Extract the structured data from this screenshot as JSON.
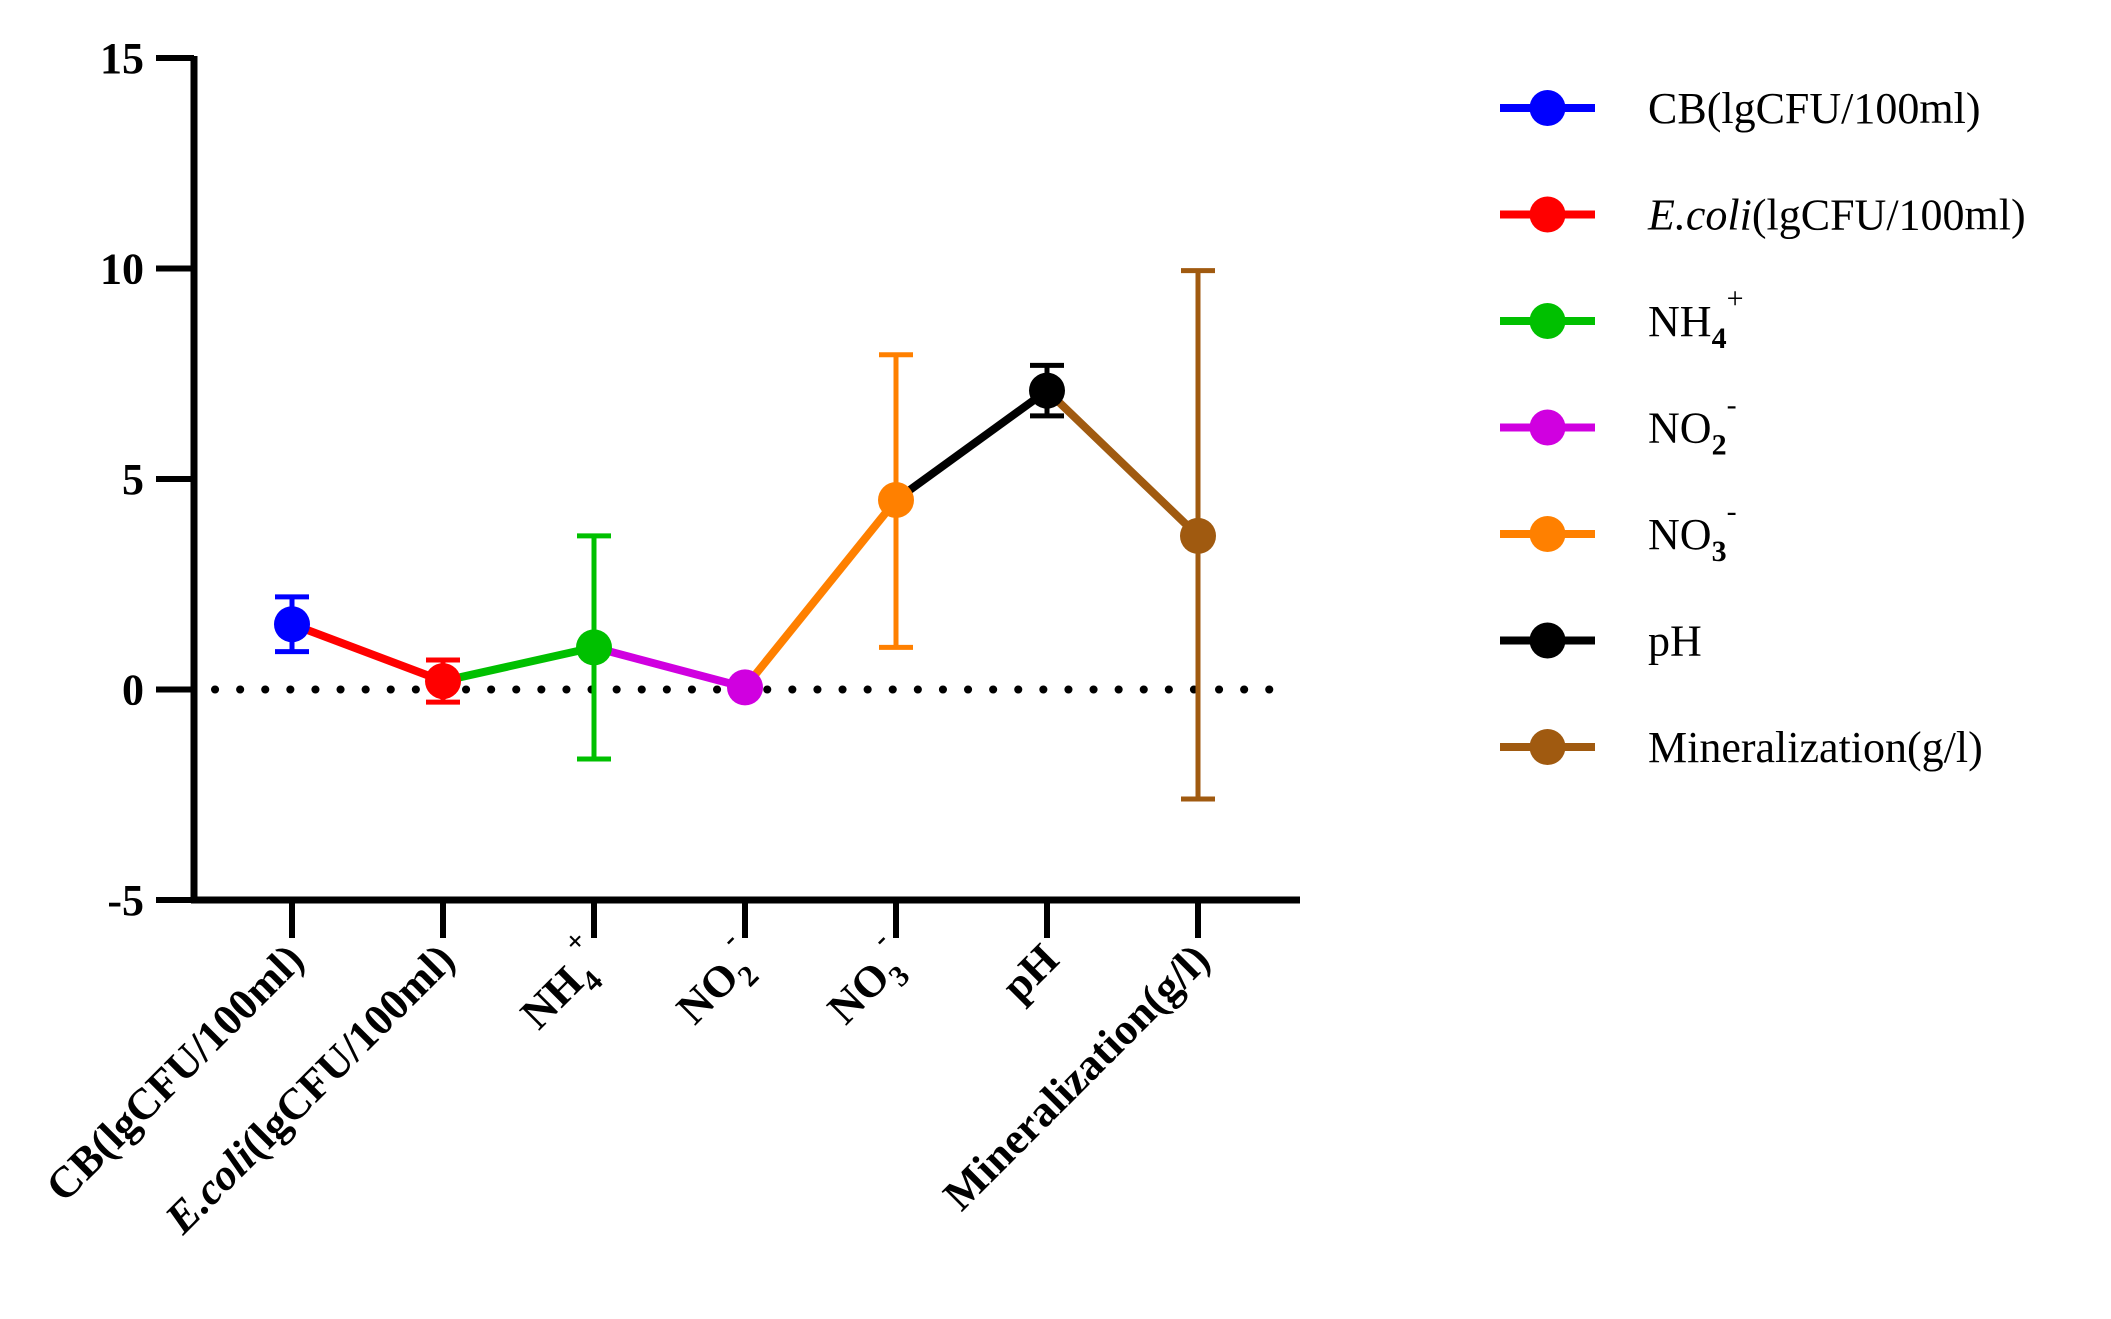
{
  "chart_data": {
    "type": "line",
    "title": "",
    "xlabel": "",
    "ylabel": "",
    "ylim": [
      -5,
      15
    ],
    "yticks": [
      -5,
      0,
      5,
      10,
      15
    ],
    "zero_line": "dotted",
    "grid": false,
    "legend_position": "right",
    "categories": [
      {
        "base": "CB(lgCFU/100ml)"
      },
      {
        "italic": "E.coli",
        "base": "(lgCFU/100ml)"
      },
      {
        "base": "NH",
        "sub": "4",
        "sup": "+"
      },
      {
        "base": "NO",
        "sub": "2",
        "sup": "-"
      },
      {
        "base": "NO",
        "sub": "3",
        "sup": "-"
      },
      {
        "base": "pH"
      },
      {
        "base": "Mineralization(g/l)"
      }
    ],
    "series": [
      {
        "label": {
          "base": "CB(lgCFU/100ml)"
        },
        "color": "#0000ff",
        "mean": 1.55,
        "err_low": 0.9,
        "err_high": 2.2
      },
      {
        "label": {
          "italic": "E.coli",
          "base": "(lgCFU/100ml)"
        },
        "color": "#ff0000",
        "mean": 0.2,
        "err_low": -0.3,
        "err_high": 0.7
      },
      {
        "label": {
          "base": "NH",
          "sub": "4",
          "sup": "+"
        },
        "color": "#00c000",
        "mean": 1.0,
        "err_low": -1.65,
        "err_high": 3.65
      },
      {
        "label": {
          "base": "NO",
          "sub": "2",
          "sup": "-"
        },
        "color": "#d000e0",
        "mean": 0.05,
        "err_low": 0.05,
        "err_high": 0.05
      },
      {
        "label": {
          "base": "NO",
          "sub": "3",
          "sup": "-"
        },
        "color": "#ff8000",
        "mean": 4.5,
        "err_low": 1.0,
        "err_high": 7.95
      },
      {
        "label": {
          "base": "pH"
        },
        "color": "#000000",
        "mean": 7.1,
        "err_low": 6.5,
        "err_high": 7.7
      },
      {
        "label": {
          "base": "Mineralization(g/l)"
        },
        "color": "#a05a10",
        "mean": 3.65,
        "err_low": -2.6,
        "err_high": 9.95
      }
    ]
  }
}
